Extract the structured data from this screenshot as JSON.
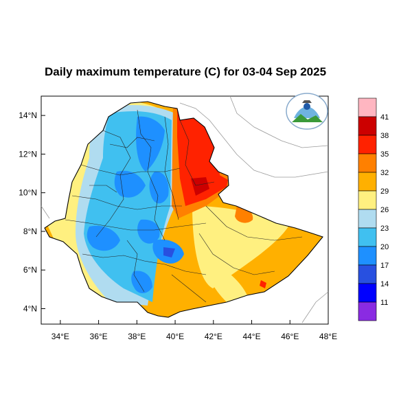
{
  "map": {
    "title": "Daily maximum temperature (C) for 03-04 Sep 2025",
    "lat_ticks": [
      {
        "value": 14,
        "label": "14°N"
      },
      {
        "value": 12,
        "label": "12°N"
      },
      {
        "value": 10,
        "label": "10°N"
      },
      {
        "value": 8,
        "label": "8°N"
      },
      {
        "value": 6,
        "label": "6°N"
      },
      {
        "value": 4,
        "label": "4°N"
      }
    ],
    "lon_ticks": [
      {
        "value": 34,
        "label": "34°E"
      },
      {
        "value": 36,
        "label": "36°E"
      },
      {
        "value": 38,
        "label": "38°E"
      },
      {
        "value": 40,
        "label": "40°E"
      },
      {
        "value": 42,
        "label": "42°E"
      },
      {
        "value": 44,
        "label": "44°E"
      },
      {
        "value": 46,
        "label": "46°E"
      },
      {
        "value": 48,
        "label": "48°E"
      }
    ],
    "lon_range": [
      33,
      48
    ],
    "lat_range": [
      3.2,
      15
    ]
  },
  "legend": {
    "colors": [
      "#ffb6c1",
      "#cc0000",
      "#ff2200",
      "#ff8000",
      "#ffb000",
      "#fff080",
      "#b0dcf0",
      "#40c0f0",
      "#1e90ff",
      "#2850e0",
      "#0000ff",
      "#8a2be2"
    ],
    "labels": [
      "41",
      "38",
      "35",
      "32",
      "29",
      "26",
      "23",
      "20",
      "17",
      "14",
      "11"
    ]
  },
  "colors": {
    "warm_orange": "#ffb000",
    "yellow": "#fff080",
    "light_blue": "#b0dcf0",
    "blue": "#40c0f0",
    "deep_blue": "#1e90ff",
    "red": "#ff2200"
  },
  "logo": {
    "icon": "ethiopian-meteorology-institute-logo"
  }
}
